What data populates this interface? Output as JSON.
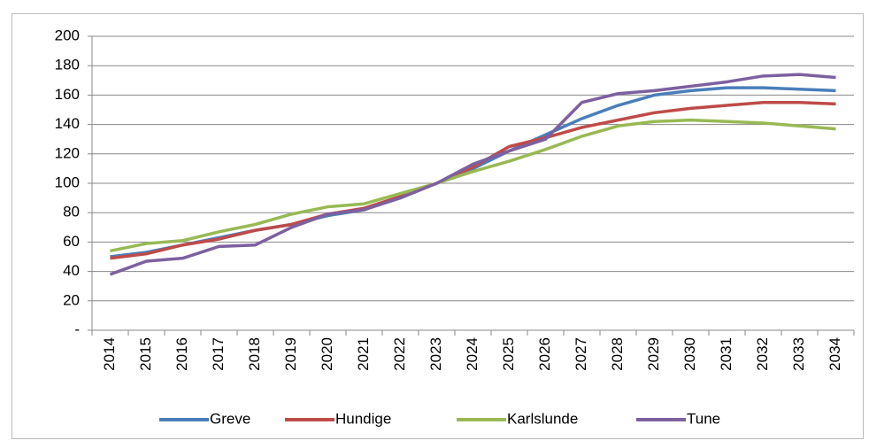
{
  "chart_data": {
    "type": "line",
    "categories": [
      "2014",
      "2015",
      "2016",
      "2017",
      "2018",
      "2019",
      "2020",
      "2021",
      "2022",
      "2023",
      "2024",
      "2025",
      "2026",
      "2027",
      "2028",
      "2029",
      "2030",
      "2031",
      "2032",
      "2033",
      "2034"
    ],
    "series": [
      {
        "name": "Greve",
        "color": "#4a7ebb",
        "values": [
          50,
          53,
          58,
          63,
          68,
          72,
          78,
          82,
          91,
          100,
          110,
          122,
          133,
          144,
          153,
          160,
          163,
          165,
          165,
          164,
          163
        ]
      },
      {
        "name": "Hundige",
        "color": "#be4b48",
        "values": [
          49,
          52,
          58,
          62,
          68,
          72,
          79,
          83,
          91,
          100,
          111,
          125,
          131,
          138,
          143,
          148,
          151,
          153,
          155,
          155,
          154
        ]
      },
      {
        "name": "Karlslunde",
        "color": "#98b954",
        "values": [
          54,
          59,
          61,
          67,
          72,
          79,
          84,
          86,
          93,
          100,
          108,
          115,
          123,
          132,
          139,
          142,
          143,
          142,
          141,
          139,
          137
        ]
      },
      {
        "name": "Tune",
        "color": "#7d60a0",
        "values": [
          38,
          47,
          49,
          57,
          58,
          70,
          79,
          82,
          90,
          100,
          113,
          122,
          130,
          155,
          161,
          163,
          166,
          169,
          173,
          174,
          172
        ]
      }
    ],
    "ylim": [
      0,
      200
    ],
    "yticks": [
      {
        "value": 0,
        "label": "-"
      },
      20,
      40,
      60,
      80,
      100,
      120,
      140,
      160,
      180,
      200
    ],
    "grid": true,
    "legend": "bottom"
  }
}
